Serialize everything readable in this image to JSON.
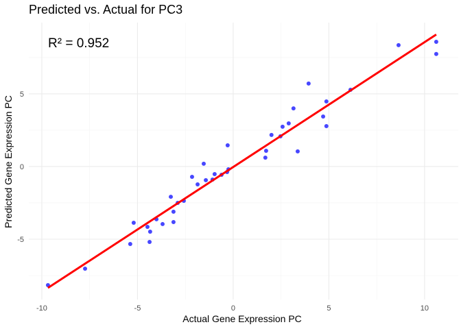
{
  "chart_data": {
    "type": "scatter",
    "title": "Predicted vs. Actual for PC3",
    "xlabel": "Actual Gene Expression PC",
    "ylabel": "Predicted Gene Expression PC",
    "annotation": "R² = 0.952",
    "xlim": [
      -10.68,
      11.76
    ],
    "ylim": [
      -9.15,
      9.9
    ],
    "xticks": [
      -10,
      -5,
      0,
      5,
      10
    ],
    "yticks": [
      -5,
      0,
      5
    ],
    "xtick_labels": [
      "-10",
      "-5",
      "0",
      "5",
      "10"
    ],
    "ytick_labels": [
      "-5",
      "0",
      "5"
    ],
    "grid": true,
    "point_color": "#0000FF",
    "line_color": "#FF0000",
    "points": [
      [
        -9.68,
        -8.16
      ],
      [
        -7.74,
        -7.03
      ],
      [
        -5.38,
        -5.33
      ],
      [
        -5.2,
        -3.87
      ],
      [
        -4.48,
        -4.15
      ],
      [
        -4.37,
        -5.19
      ],
      [
        -4.34,
        -4.48
      ],
      [
        -4.01,
        -3.63
      ],
      [
        -3.69,
        -3.96
      ],
      [
        -3.26,
        -2.08
      ],
      [
        -3.12,
        -3.11
      ],
      [
        -3.12,
        -3.82
      ],
      [
        -2.9,
        -2.5
      ],
      [
        -2.58,
        -2.36
      ],
      [
        -2.15,
        -0.71
      ],
      [
        -1.86,
        -1.23
      ],
      [
        -1.54,
        0.19
      ],
      [
        -1.43,
        -0.94
      ],
      [
        -1.08,
        -0.9
      ],
      [
        -0.97,
        -0.52
      ],
      [
        -0.61,
        -0.57
      ],
      [
        -0.32,
        -0.38
      ],
      [
        -0.29,
        1.46
      ],
      [
        -0.25,
        -0.19
      ],
      [
        1.68,
        0.61
      ],
      [
        1.72,
        1.08
      ],
      [
        2.0,
        2.17
      ],
      [
        2.47,
        2.08
      ],
      [
        2.58,
        2.74
      ],
      [
        2.9,
        2.97
      ],
      [
        3.15,
        4.0
      ],
      [
        3.37,
        1.04
      ],
      [
        3.94,
        5.71
      ],
      [
        4.7,
        3.44
      ],
      [
        4.87,
        4.48
      ],
      [
        4.87,
        2.78
      ],
      [
        6.13,
        5.28
      ],
      [
        8.64,
        8.35
      ],
      [
        10.61,
        8.58
      ],
      [
        10.61,
        7.74
      ]
    ],
    "fit_line": [
      [
        -9.68,
        -8.35
      ],
      [
        10.61,
        9.08
      ]
    ]
  }
}
